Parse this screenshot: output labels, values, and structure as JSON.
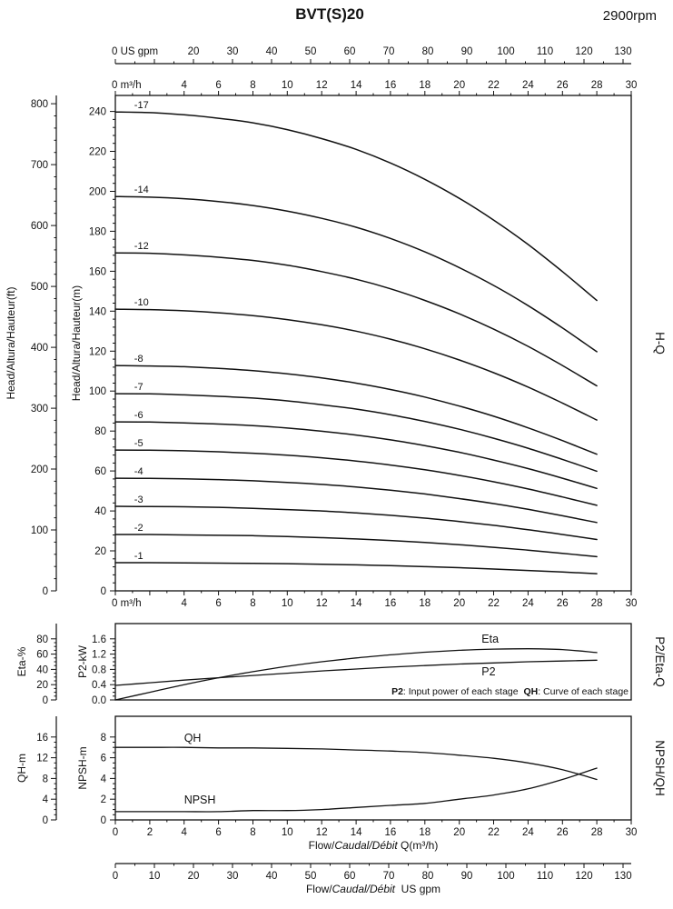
{
  "header": {
    "title": "BVT(S)20",
    "rpm": "2900rpm"
  },
  "colors": {
    "ink": "#111111",
    "bg": "#ffffff"
  },
  "axes": {
    "top_gpm": {
      "unit": "US gpm",
      "labels": [
        {
          "v": 0,
          "t": "0 US gpm"
        },
        {
          "v": 20,
          "t": "20"
        },
        {
          "v": 30,
          "t": "30"
        },
        {
          "v": 40,
          "t": "40"
        },
        {
          "v": 50,
          "t": "50"
        },
        {
          "v": 60,
          "t": "60"
        },
        {
          "v": 70,
          "t": "70"
        },
        {
          "v": 80,
          "t": "80"
        },
        {
          "v": 90,
          "t": "90"
        },
        {
          "v": 100,
          "t": "100"
        },
        {
          "v": 110,
          "t": "110"
        },
        {
          "v": 120,
          "t": "120"
        },
        {
          "v": 130,
          "t": "130"
        }
      ]
    },
    "top_m3h": {
      "unit": "m³/h",
      "labels": [
        {
          "v": 0,
          "t": "0 m³/h"
        },
        {
          "v": 4,
          "t": "4"
        },
        {
          "v": 6,
          "t": "6"
        },
        {
          "v": 8,
          "t": "8"
        },
        {
          "v": 10,
          "t": "10"
        },
        {
          "v": 12,
          "t": "12"
        },
        {
          "v": 14,
          "t": "14"
        },
        {
          "v": 16,
          "t": "16"
        },
        {
          "v": 18,
          "t": "18"
        },
        {
          "v": 20,
          "t": "20"
        },
        {
          "v": 22,
          "t": "22"
        },
        {
          "v": 24,
          "t": "24"
        },
        {
          "v": 26,
          "t": "26"
        },
        {
          "v": 28,
          "t": "28"
        },
        {
          "v": 30,
          "t": "30"
        }
      ]
    },
    "low_x": {
      "labels": [
        {
          "v": 0,
          "t": "0"
        },
        {
          "v": 2,
          "t": "2"
        },
        {
          "v": 4,
          "t": "4"
        },
        {
          "v": 6,
          "t": "6"
        },
        {
          "v": 8,
          "t": "8"
        },
        {
          "v": 10,
          "t": "10"
        },
        {
          "v": 12,
          "t": "12"
        },
        {
          "v": 14,
          "t": "14"
        },
        {
          "v": 16,
          "t": "16"
        },
        {
          "v": 18,
          "t": "18"
        },
        {
          "v": 20,
          "t": "20"
        },
        {
          "v": 22,
          "t": "22"
        },
        {
          "v": 24,
          "t": "24"
        },
        {
          "v": 26,
          "t": "26"
        },
        {
          "v": 28,
          "t": "28"
        },
        {
          "v": 30,
          "t": "30"
        }
      ]
    },
    "bottom_gpm": {
      "labels": [
        {
          "v": 0,
          "t": "0"
        },
        {
          "v": 10,
          "t": "10"
        },
        {
          "v": 20,
          "t": "20"
        },
        {
          "v": 30,
          "t": "30"
        },
        {
          "v": 40,
          "t": "40"
        },
        {
          "v": 50,
          "t": "50"
        },
        {
          "v": 60,
          "t": "60"
        },
        {
          "v": 70,
          "t": "70"
        },
        {
          "v": 80,
          "t": "80"
        },
        {
          "v": 90,
          "t": "90"
        },
        {
          "v": 100,
          "t": "100"
        },
        {
          "v": 110,
          "t": "110"
        },
        {
          "v": 120,
          "t": "120"
        },
        {
          "v": 130,
          "t": "130"
        }
      ],
      "title_parts": [
        {
          "t": "Flow/"
        },
        {
          "t": "Caudal/Débit",
          "i": 1
        },
        {
          "t": "  US gpm"
        }
      ]
    }
  },
  "chart_data": [
    {
      "id": "hq",
      "type": "line",
      "title": "H-Q",
      "x_unit": "m³/h",
      "x_range": [
        0,
        30
      ],
      "y_outer": {
        "label": "Head/Altura/Hauteur(ft)",
        "ticks": [
          "0",
          "100",
          "200",
          "300",
          "400",
          "500",
          "600",
          "700",
          "800"
        ],
        "range": [
          0,
          813
        ]
      },
      "y_inner": {
        "label": "Head/Altura/Hauteur(m)",
        "ticks": [
          "0",
          "20",
          "40",
          "60",
          "80",
          "100",
          "120",
          "140",
          "160",
          "180",
          "200",
          "220",
          "240"
        ],
        "range": [
          0,
          248
        ]
      },
      "x": [
        0,
        2,
        4,
        6,
        8,
        10,
        12,
        14,
        16,
        18,
        20,
        22,
        24,
        26,
        28
      ],
      "series": [
        {
          "name": "-17",
          "values": [
            239.7,
            239.4,
            238.3,
            236.6,
            234.3,
            230.9,
            226.4,
            221.0,
            214.2,
            206.0,
            196.5,
            185.6,
            173.4,
            159.8,
            145.4
          ]
        },
        {
          "name": "-14",
          "values": [
            197.4,
            197.1,
            196.3,
            194.9,
            192.9,
            190.1,
            186.5,
            182.0,
            176.4,
            169.7,
            161.8,
            152.9,
            142.8,
            131.6,
            119.7
          ]
        },
        {
          "name": "-12",
          "values": [
            169.2,
            169.0,
            168.2,
            167.0,
            165.4,
            163.0,
            159.8,
            156.0,
            151.2,
            145.4,
            138.7,
            131.0,
            122.4,
            112.8,
            102.6
          ]
        },
        {
          "name": "-10",
          "values": [
            141.0,
            140.8,
            140.2,
            139.2,
            137.8,
            135.8,
            133.2,
            130.0,
            126.0,
            121.2,
            115.6,
            109.2,
            102.0,
            94.0,
            85.5
          ]
        },
        {
          "name": "-8",
          "values": [
            112.8,
            112.6,
            112.2,
            111.4,
            110.2,
            108.6,
            106.6,
            104.0,
            100.8,
            97.0,
            92.5,
            87.4,
            81.6,
            75.2,
            68.4
          ]
        },
        {
          "name": "-7",
          "values": [
            98.7,
            98.6,
            98.1,
            97.4,
            96.5,
            95.1,
            93.2,
            91.0,
            88.2,
            84.8,
            80.9,
            76.4,
            71.4,
            65.8,
            59.9
          ]
        },
        {
          "name": "-6",
          "values": [
            84.6,
            84.5,
            84.1,
            83.5,
            82.7,
            81.5,
            79.9,
            78.0,
            75.6,
            72.7,
            69.4,
            65.5,
            61.2,
            56.4,
            51.3
          ]
        },
        {
          "name": "-5",
          "values": [
            70.5,
            70.4,
            70.1,
            69.6,
            68.9,
            67.9,
            66.6,
            65.0,
            63.0,
            60.6,
            57.8,
            54.6,
            51.0,
            47.0,
            42.8
          ]
        },
        {
          "name": "-4",
          "values": [
            56.4,
            56.3,
            56.1,
            55.7,
            55.1,
            54.3,
            53.3,
            52.0,
            50.4,
            48.5,
            46.2,
            43.7,
            40.8,
            37.6,
            34.2
          ]
        },
        {
          "name": "-3",
          "values": [
            42.3,
            42.2,
            42.1,
            41.8,
            41.3,
            40.7,
            40.0,
            39.0,
            37.8,
            36.4,
            34.7,
            32.8,
            30.6,
            28.2,
            25.7
          ]
        },
        {
          "name": "-2",
          "values": [
            28.2,
            28.2,
            28.0,
            27.8,
            27.6,
            27.2,
            26.6,
            26.0,
            25.2,
            24.2,
            23.1,
            21.8,
            20.4,
            18.8,
            17.1
          ]
        },
        {
          "name": "-1",
          "values": [
            14.1,
            14.1,
            14.0,
            13.9,
            13.8,
            13.6,
            13.3,
            13.0,
            12.6,
            12.1,
            11.6,
            10.9,
            10.2,
            9.4,
            8.6
          ]
        }
      ]
    },
    {
      "id": "p2eta",
      "type": "line",
      "title": "P2/Eta-Q",
      "y_outer": {
        "label": "Eta-%",
        "ticks": [
          "0",
          "20",
          "40",
          "60",
          "80"
        ],
        "range": [
          0,
          100
        ]
      },
      "y_inner": {
        "label": "P2-kW",
        "ticks": [
          "0.0",
          "0.4",
          "0.8",
          "1.2",
          "1.6"
        ],
        "range": [
          0,
          2
        ]
      },
      "x": [
        0,
        2,
        4,
        6,
        8,
        10,
        12,
        14,
        16,
        18,
        20,
        22,
        24,
        26,
        28
      ],
      "series": [
        {
          "name": "Eta",
          "axis": "outer",
          "values": [
            0,
            10,
            20,
            29,
            37,
            44,
            50,
            55,
            59,
            62.5,
            65,
            66.5,
            67,
            66,
            62
          ]
        },
        {
          "name": "P2",
          "axis": "inner",
          "values": [
            0.38,
            0.45,
            0.52,
            0.58,
            0.64,
            0.7,
            0.76,
            0.81,
            0.86,
            0.9,
            0.94,
            0.97,
            1.0,
            1.02,
            1.04
          ]
        }
      ],
      "note_parts": [
        {
          "t": "P2",
          "b": 1
        },
        {
          "t": ": Input power of each stage  "
        },
        {
          "t": "QH",
          "b": 1
        },
        {
          "t": ": Curve of each stage"
        }
      ]
    },
    {
      "id": "npshqh",
      "type": "line",
      "title": "NPSH/QH",
      "y_outer": {
        "label": "QH-m",
        "ticks": [
          "0",
          "4",
          "8",
          "12",
          "16"
        ],
        "range": [
          0,
          20
        ]
      },
      "y_inner": {
        "label": "NPSH-m",
        "ticks": [
          "0",
          "2",
          "4",
          "6",
          "8"
        ],
        "range": [
          0,
          10
        ]
      },
      "x": [
        0,
        2,
        4,
        6,
        8,
        10,
        12,
        14,
        16,
        18,
        20,
        22,
        24,
        26,
        28
      ],
      "series": [
        {
          "name": "QH",
          "axis": "outer",
          "values": [
            14.0,
            14.0,
            14.0,
            13.9,
            13.9,
            13.8,
            13.7,
            13.5,
            13.3,
            13.0,
            12.5,
            11.9,
            11.0,
            9.7,
            7.8
          ]
        },
        {
          "name": "NPSH",
          "axis": "inner",
          "values": [
            0.8,
            0.8,
            0.8,
            0.8,
            0.9,
            0.9,
            1.0,
            1.2,
            1.4,
            1.6,
            2.0,
            2.4,
            3.0,
            3.9,
            5.0
          ]
        }
      ],
      "xlabel_parts": [
        {
          "t": "Flow/"
        },
        {
          "t": "Caudal/Débit",
          "i": 1
        },
        {
          "t": " Q(m³/h)"
        }
      ]
    }
  ]
}
